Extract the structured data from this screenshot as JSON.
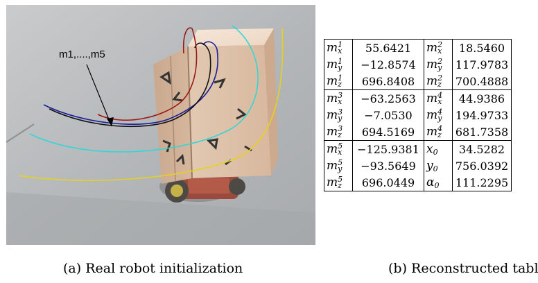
{
  "figure": {
    "panel_a": {
      "caption": "(a) Real robot initialization",
      "annotation": "m1,....,m5"
    },
    "panel_b": {
      "caption": "(b) Reconstructed table",
      "rows": [
        {
          "sym1": {
            "base": "m",
            "sup": "1",
            "sub": "x"
          },
          "val1": "55.6421",
          "sym2": {
            "base": "m",
            "sup": "2",
            "sub": "x"
          },
          "val2": "18.5460"
        },
        {
          "sym1": {
            "base": "m",
            "sup": "1",
            "sub": "y"
          },
          "val1": "−12.8574",
          "sym2": {
            "base": "m",
            "sup": "2",
            "sub": "y"
          },
          "val2": "117.9783"
        },
        {
          "sym1": {
            "base": "m",
            "sup": "1",
            "sub": "z"
          },
          "val1": "696.8408",
          "sym2": {
            "base": "m",
            "sup": "2",
            "sub": "z"
          },
          "val2": "700.4888"
        },
        {
          "sym1": {
            "base": "m",
            "sup": "3",
            "sub": "x"
          },
          "val1": "−63.2563",
          "sym2": {
            "base": "m",
            "sup": "4",
            "sub": "x"
          },
          "val2": "44.9386"
        },
        {
          "sym1": {
            "base": "m",
            "sup": "3",
            "sub": "y"
          },
          "val1": "−7.0530",
          "sym2": {
            "base": "m",
            "sup": "4",
            "sub": "y"
          },
          "val2": "194.9733"
        },
        {
          "sym1": {
            "base": "m",
            "sup": "3",
            "sub": "z"
          },
          "val1": "694.5169",
          "sym2": {
            "base": "m",
            "sup": "4",
            "sub": "z"
          },
          "val2": "681.7358"
        },
        {
          "sym1": {
            "base": "m",
            "sup": "5",
            "sub": "x"
          },
          "val1": "−125.9381",
          "sym2": {
            "base": "x",
            "sup": "",
            "sub": "0"
          },
          "val2": "34.5282"
        },
        {
          "sym1": {
            "base": "m",
            "sup": "5",
            "sub": "y"
          },
          "val1": "−93.5649",
          "sym2": {
            "base": "y",
            "sup": "",
            "sub": "0"
          },
          "val2": "756.0392"
        },
        {
          "sym1": {
            "base": "m",
            "sup": "5",
            "sub": "z"
          },
          "val1": "696.0449",
          "sym2": {
            "base": "α",
            "sup": "",
            "sub": "0"
          },
          "val2": "111.2295"
        }
      ]
    }
  }
}
